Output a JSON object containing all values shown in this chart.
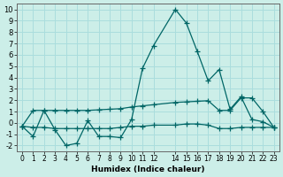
{
  "xlabel": "Humidex (Indice chaleur)",
  "background_color": "#cceee8",
  "grid_color": "#aadddd",
  "line_color": "#006666",
  "x_ticks": [
    0,
    1,
    2,
    3,
    4,
    5,
    6,
    7,
    8,
    9,
    10,
    11,
    12,
    14,
    15,
    16,
    17,
    18,
    19,
    20,
    21,
    22,
    23
  ],
  "xlim": [
    -0.5,
    23.5
  ],
  "ylim": [
    -2.5,
    10.5
  ],
  "y_ticks": [
    -2,
    -1,
    0,
    1,
    2,
    3,
    4,
    5,
    6,
    7,
    8,
    9,
    10
  ],
  "series1_x": [
    0,
    1,
    2,
    3,
    4,
    5,
    6,
    7,
    8,
    9,
    10,
    11,
    12,
    14,
    15,
    16,
    17,
    18,
    19,
    20,
    21,
    22,
    23
  ],
  "series1_y": [
    -0.3,
    -1.2,
    1.1,
    -0.6,
    -2.0,
    -1.8,
    0.2,
    -1.2,
    -1.2,
    -1.3,
    0.3,
    4.8,
    6.8,
    10.0,
    8.8,
    6.3,
    3.7,
    4.7,
    1.2,
    2.3,
    0.3,
    0.1,
    -0.4
  ],
  "series2_x": [
    0,
    1,
    2,
    3,
    4,
    5,
    6,
    7,
    8,
    9,
    10,
    11,
    12,
    14,
    15,
    16,
    17,
    18,
    19,
    20,
    21,
    22,
    23
  ],
  "series2_y": [
    -0.3,
    1.1,
    1.1,
    1.1,
    1.1,
    1.1,
    1.1,
    1.15,
    1.2,
    1.25,
    1.4,
    1.5,
    1.6,
    1.8,
    1.85,
    1.9,
    1.95,
    1.1,
    1.1,
    2.2,
    2.2,
    1.0,
    -0.4
  ],
  "series3_x": [
    0,
    1,
    2,
    3,
    4,
    5,
    6,
    7,
    8,
    9,
    10,
    11,
    12,
    14,
    15,
    16,
    17,
    18,
    19,
    20,
    21,
    22,
    23
  ],
  "series3_y": [
    -0.3,
    -0.4,
    -0.4,
    -0.5,
    -0.5,
    -0.5,
    -0.5,
    -0.5,
    -0.5,
    -0.4,
    -0.3,
    -0.3,
    -0.2,
    -0.2,
    -0.1,
    -0.1,
    -0.2,
    -0.5,
    -0.5,
    -0.4,
    -0.4,
    -0.4,
    -0.4
  ]
}
